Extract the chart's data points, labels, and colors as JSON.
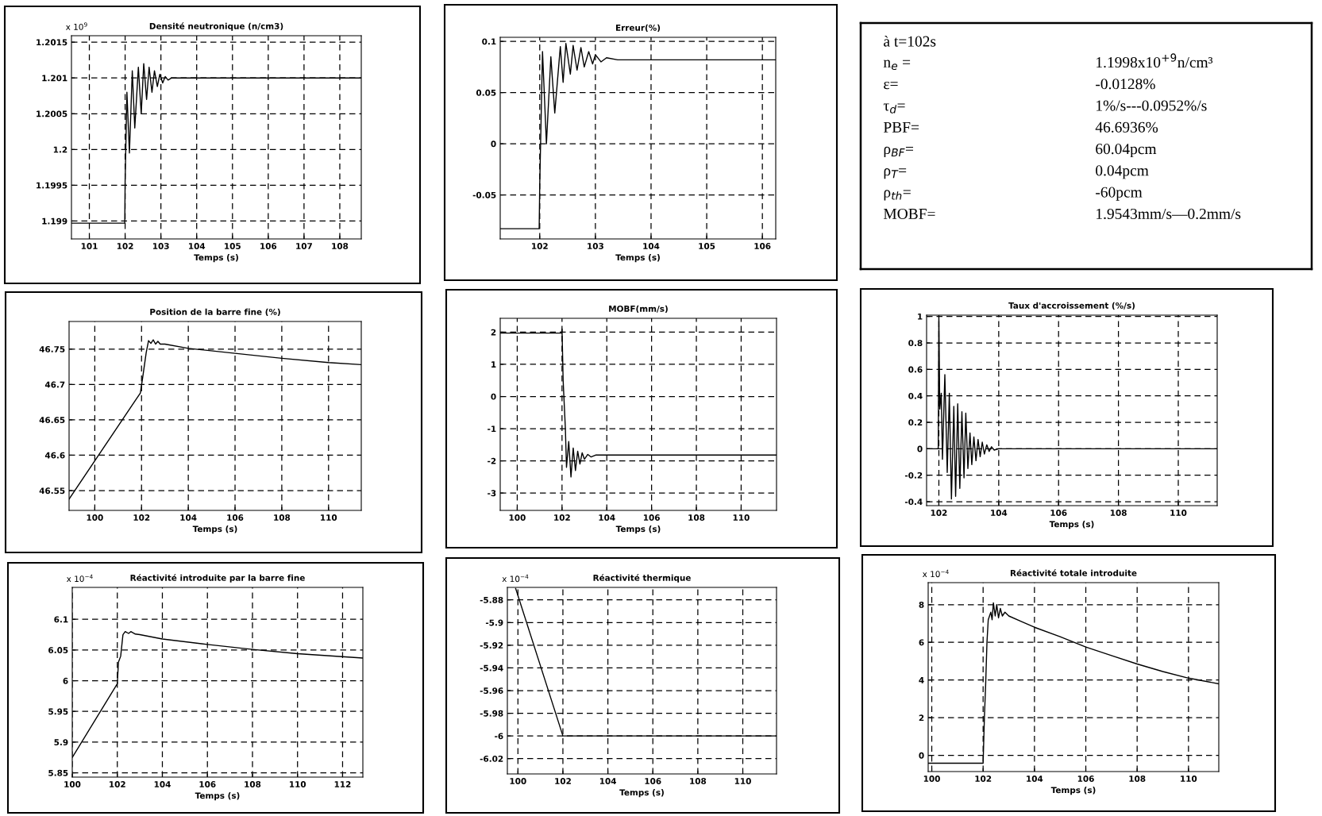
{
  "chart_data": [
    {
      "type": "line",
      "title": "Densité neutronique (n/cm3)",
      "xlabel": "Temps (s)",
      "annotations": [
        "x 10$^{9}$"
      ],
      "color": "#000000",
      "grid": true,
      "xlim": [
        100.5,
        108.6
      ],
      "xticks": [
        101,
        102,
        103,
        104,
        105,
        106,
        107,
        108
      ],
      "ylim": [
        1.19875,
        1.20159
      ],
      "yticks": [
        1.199,
        1.1995,
        1.2,
        1.2005,
        1.201,
        1.2015
      ],
      "x": [
        100.5,
        101.99,
        102.0,
        102.05,
        102.12,
        102.2,
        102.27,
        102.37,
        102.45,
        102.52,
        102.6,
        102.67,
        102.75,
        102.82,
        102.9,
        102.97,
        103.05,
        103.12,
        103.2,
        103.3,
        108.6
      ],
      "values": [
        1.19897,
        1.19897,
        1.19955,
        1.2008,
        1.19995,
        1.2011,
        1.2003,
        1.20115,
        1.2005,
        1.2012,
        1.2007,
        1.20115,
        1.2008,
        1.2011,
        1.20088,
        1.20105,
        1.20093,
        1.20102,
        1.20097,
        1.201,
        1.201
      ]
    },
    {
      "type": "line",
      "title": "Erreur(%)",
      "xlabel": "Temps (s)",
      "color": "#000000",
      "grid": true,
      "xlim": [
        101.29,
        106.24
      ],
      "xticks": [
        102,
        103,
        104,
        105,
        106
      ],
      "ylim": [
        -0.093,
        0.104
      ],
      "yticks": [
        -0.05,
        0,
        0.05,
        0.1
      ],
      "x": [
        101.29,
        101.99,
        102.0,
        102.05,
        102.12,
        102.2,
        102.27,
        102.37,
        102.42,
        102.47,
        102.55,
        102.6,
        102.67,
        102.74,
        102.8,
        102.88,
        102.95,
        103.0,
        103.1,
        103.2,
        103.4,
        106.24
      ],
      "values": [
        -0.083,
        -0.083,
        -0.04,
        0.09,
        0.0,
        0.085,
        0.03,
        0.095,
        0.06,
        0.098,
        0.068,
        0.096,
        0.072,
        0.094,
        0.075,
        0.09,
        0.078,
        0.087,
        0.08,
        0.084,
        0.082,
        0.082
      ]
    },
    {
      "type": "other",
      "annotations": [
        "à t=102s",
        "n$_{e}$ =",
        "ε=",
        "τ$_{d}$=",
        "PBF=",
        "ρ$_{BF}$=",
        "ρ$_{T}$=",
        "ρ$_{th}$=",
        "MOBF=",
        "1.1998x10$^{+9}$n/cm³",
        "-0.0128%",
        "1%/s---0.0952%/s",
        "46.6936%",
        "60.04pcm",
        "0.04pcm",
        "-60pcm",
        "1.9543mm/s—0.2mm/s"
      ]
    },
    {
      "type": "line",
      "title": "Position de la barre fine (%)",
      "xlabel": "Temps (s)",
      "color": "#000000",
      "grid": true,
      "xlim": [
        98.9,
        111.4
      ],
      "xticks": [
        100,
        102,
        104,
        106,
        108,
        110
      ],
      "ylim": [
        46.522,
        46.789
      ],
      "yticks": [
        46.55,
        46.6,
        46.65,
        46.7,
        46.75
      ],
      "x": [
        98.9,
        101.95,
        102.05,
        102.2,
        102.3,
        102.4,
        102.5,
        102.6,
        102.7,
        102.8,
        103.0,
        104.0,
        106.0,
        108.0,
        110.0,
        111.4
      ],
      "values": [
        46.538,
        46.688,
        46.71,
        46.745,
        46.762,
        46.758,
        46.763,
        46.757,
        46.761,
        46.757,
        46.757,
        46.751,
        46.744,
        46.737,
        46.731,
        46.728
      ]
    },
    {
      "type": "line",
      "title": "MOBF(mm/s)",
      "xlabel": "Temps (s)",
      "color": "#000000",
      "grid": true,
      "xlim": [
        99.24,
        111.58
      ],
      "xticks": [
        100,
        102,
        104,
        106,
        108,
        110
      ],
      "ylim": [
        -3.54,
        2.43
      ],
      "yticks": [
        -3,
        -2,
        -1,
        0,
        1,
        2
      ],
      "x": [
        99.24,
        101.98,
        102.0,
        102.05,
        102.15,
        102.2,
        102.3,
        102.4,
        102.5,
        102.6,
        102.7,
        102.8,
        102.9,
        103.0,
        103.15,
        103.3,
        103.5,
        111.58
      ],
      "values": [
        1.97,
        1.97,
        2.1,
        0.5,
        -1.0,
        -2.2,
        -1.4,
        -2.5,
        -1.6,
        -2.3,
        -1.7,
        -2.1,
        -1.75,
        -1.95,
        -1.8,
        -1.88,
        -1.82,
        -1.82
      ]
    },
    {
      "type": "line",
      "title": "Taux d'accroissement (%/s)",
      "xlabel": "Temps (s)",
      "color": "#000000",
      "grid": true,
      "xlim": [
        101.59,
        111.3
      ],
      "xticks": [
        102,
        104,
        106,
        108,
        110
      ],
      "ylim": [
        -0.43,
        1.01
      ],
      "yticks": [
        -0.4,
        -0.2,
        0,
        0.2,
        0.4,
        0.6,
        0.8,
        1
      ],
      "x": [
        101.59,
        101.98,
        102.0,
        102.03,
        102.08,
        102.12,
        102.2,
        102.28,
        102.35,
        102.42,
        102.5,
        102.56,
        102.63,
        102.7,
        102.77,
        102.84,
        102.9,
        102.97,
        103.04,
        103.1,
        103.17,
        103.24,
        103.31,
        103.38,
        103.45,
        103.52,
        103.6,
        103.68,
        103.76,
        103.85,
        104.0,
        111.3
      ],
      "values": [
        0,
        0,
        1.0,
        0.3,
        0.42,
        -0.08,
        0.56,
        -0.18,
        0.42,
        -0.38,
        0.32,
        -0.36,
        0.34,
        -0.3,
        0.28,
        -0.22,
        0.27,
        -0.15,
        0.12,
        -0.12,
        0.09,
        -0.09,
        0.07,
        -0.06,
        0.05,
        -0.04,
        0.03,
        -0.02,
        0.015,
        -0.01,
        0,
        0
      ]
    },
    {
      "type": "line",
      "title": "Réactivité introduite par la barre fine",
      "xlabel": "Temps (s)",
      "annotations": [
        "x 10$^{−4}$"
      ],
      "color": "#000000",
      "grid": true,
      "xlim": [
        100,
        112.9
      ],
      "xticks": [
        100,
        102,
        104,
        106,
        108,
        110,
        112
      ],
      "ylim": [
        5.843,
        6.152
      ],
      "yticks": [
        5.85,
        5.9,
        5.95,
        6,
        6.05,
        6.1
      ],
      "x": [
        100,
        102,
        102.05,
        102.15,
        102.25,
        102.35,
        102.5,
        102.6,
        102.8,
        103,
        104,
        106,
        108,
        110,
        112.9
      ],
      "values": [
        5.875,
        5.995,
        6.03,
        6.04,
        6.075,
        6.08,
        6.077,
        6.08,
        6.076,
        6.075,
        6.068,
        6.059,
        6.051,
        6.044,
        6.037
      ]
    },
    {
      "type": "line",
      "title": "Réactivité thermique",
      "xlabel": "Temps (s)",
      "annotations": [
        "x 10$^{−4}$"
      ],
      "color": "#000000",
      "grid": true,
      "xlim": [
        99.53,
        111.5
      ],
      "xticks": [
        100,
        102,
        104,
        106,
        108,
        110
      ],
      "ylim": [
        -6.0335,
        -5.869
      ],
      "yticks": [
        -6.02,
        -6,
        -5.98,
        -5.96,
        -5.94,
        -5.92,
        -5.9,
        -5.88
      ],
      "x": [
        99.9,
        102,
        111.5
      ],
      "values": [
        -5.87,
        -6.0,
        -6.0
      ]
    },
    {
      "type": "line",
      "title": "Réactivité totale introduite",
      "xlabel": "Temps (s)",
      "annotations": [
        "x 10$^{−4}$"
      ],
      "color": "#000000",
      "grid": true,
      "xlim": [
        99.86,
        111.18
      ],
      "xticks": [
        100,
        102,
        104,
        106,
        108,
        110
      ],
      "ylim": [
        -0.86,
        9.17
      ],
      "yticks": [
        0,
        2,
        4,
        6,
        8
      ],
      "x": [
        99.86,
        102,
        102.05,
        102.1,
        102.15,
        102.2,
        102.3,
        102.35,
        102.4,
        102.47,
        102.53,
        102.6,
        102.67,
        102.75,
        102.85,
        103,
        103.5,
        104,
        105,
        106,
        107,
        108,
        109,
        110,
        111.18
      ],
      "values": [
        -0.42,
        -0.42,
        2,
        3.8,
        6.0,
        7.2,
        7.6,
        7.2,
        8.1,
        7.4,
        8.0,
        7.3,
        7.8,
        7.4,
        7.6,
        7.4,
        7.1,
        6.8,
        6.3,
        5.75,
        5.3,
        4.85,
        4.45,
        4.1,
        3.8
      ]
    }
  ]
}
